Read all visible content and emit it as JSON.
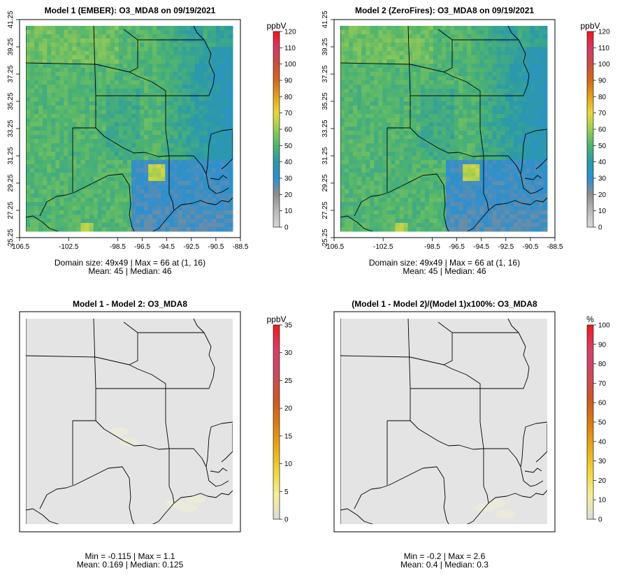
{
  "chart_data": [
    {
      "type": "heatmap",
      "title": "Model 1 (EMBER): O3_MDA8 on 09/19/2021",
      "units": "ppbV",
      "colorbar_ticks": [
        "0",
        "10",
        "20",
        "30",
        "40",
        "50",
        "60",
        "70",
        "80",
        "90",
        "100",
        "110",
        "120"
      ],
      "colorbar_range": [
        0,
        120
      ],
      "xticks": [
        "-106.5",
        "-102.5",
        "-98.5",
        "-96.5",
        "-94.5",
        "-92.5",
        "-90.5",
        "-88.5"
      ],
      "yticks": [
        "25.25",
        "27.25",
        "29.25",
        "31.25",
        "33.25",
        "35.25",
        "37.25",
        "39.25",
        "41.25"
      ],
      "lon_range": [
        -106.5,
        -88.5
      ],
      "lat_range": [
        25.25,
        41.25
      ],
      "stats_line1": "Domain size: 49x49 | Max = 66 at (1, 16)",
      "stats_line2": "Mean: 45 |  Median: 46",
      "domain_size": "49x49",
      "max": 66,
      "max_location": "(1, 16)",
      "mean": 45,
      "median": 46
    },
    {
      "type": "heatmap",
      "title": "Model 2 (ZeroFires): O3_MDA8 on 09/19/2021",
      "units": "ppbV",
      "colorbar_ticks": [
        "0",
        "10",
        "20",
        "30",
        "40",
        "50",
        "60",
        "70",
        "80",
        "90",
        "100",
        "110",
        "120"
      ],
      "colorbar_range": [
        0,
        120
      ],
      "xticks": [
        "-106.5",
        "-102.5",
        "-98.5",
        "-96.5",
        "-94.5",
        "-92.5",
        "-90.5",
        "-88.5"
      ],
      "yticks": [
        "25.25",
        "27.25",
        "29.25",
        "31.25",
        "33.25",
        "35.25",
        "37.25",
        "39.25",
        "41.25"
      ],
      "lon_range": [
        -106.5,
        -88.5
      ],
      "lat_range": [
        25.25,
        41.25
      ],
      "stats_line1": "Domain size: 49x49 | Max = 66 at (1, 16)",
      "stats_line2": "Mean: 45 |  Median: 46",
      "domain_size": "49x49",
      "max": 66,
      "max_location": "(1, 16)",
      "mean": 45,
      "median": 46
    },
    {
      "type": "heatmap",
      "title": "Model 1 - Model 2: O3_MDA8",
      "units": "ppbV",
      "colorbar_ticks": [
        "0",
        "5",
        "10",
        "15",
        "20",
        "25",
        "30",
        "35"
      ],
      "colorbar_range": [
        0,
        35
      ],
      "stats_line1": "Min = -0.115 | Max = 1.1",
      "stats_line2": "Mean: 0.169 |  Median: 0.125",
      "min": -0.115,
      "max": 1.1,
      "mean": 0.169,
      "median": 0.125
    },
    {
      "type": "heatmap",
      "title": "(Model 1 - Model 2)/(Model 1)x100%: O3_MDA8",
      "units": "%",
      "colorbar_ticks": [
        "0",
        "10",
        "20",
        "30",
        "40",
        "50",
        "60",
        "70",
        "80",
        "90",
        "100"
      ],
      "colorbar_range": [
        0,
        100
      ],
      "stats_line1": "Min = -0.2 | Max = 2.6",
      "stats_line2": "Mean: 0.4 |  Median: 0.3",
      "min": -0.2,
      "max": 2.6,
      "mean": 0.4,
      "median": 0.3
    }
  ],
  "colors": {
    "model_ramp": [
      "#d8d8d8",
      "#b9b9b9",
      "#8d8d8d",
      "#2f8fcf",
      "#2b9aa7",
      "#4fb46e",
      "#9bcc55",
      "#e8d83a",
      "#e3a11c",
      "#d26a1e",
      "#c9503e",
      "#d23a66",
      "#ee1a1a"
    ],
    "diff_ramp": [
      "#dcdcdc",
      "#f5ee9a",
      "#f0d43a",
      "#e8a81a",
      "#d87a14",
      "#c9572a",
      "#c94a60",
      "#d5406a",
      "#ee1a1a"
    ],
    "diff_fill": "#e4e4e4",
    "border": "#000000"
  }
}
